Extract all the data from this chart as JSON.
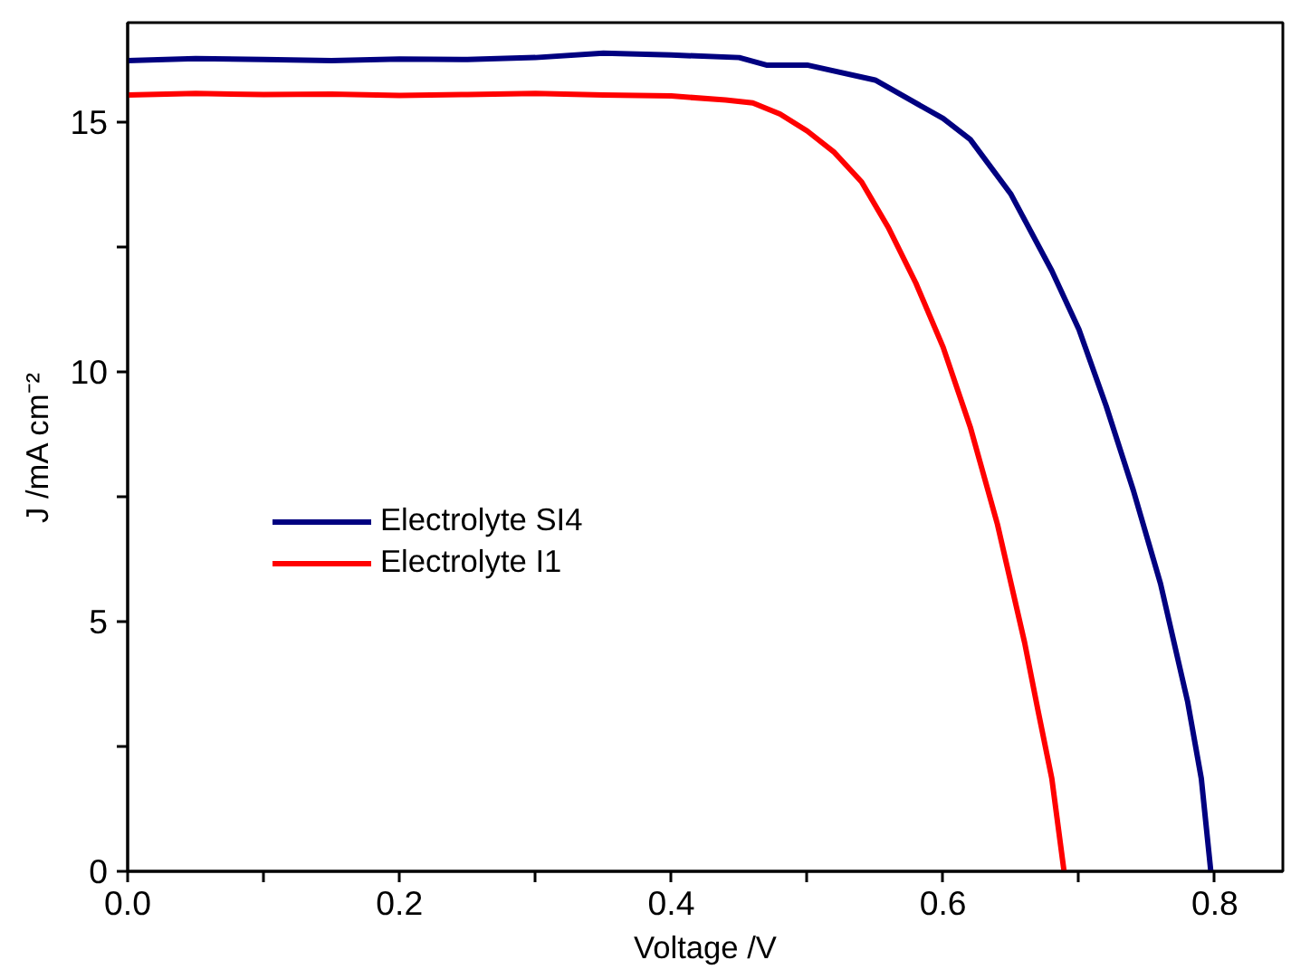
{
  "chart_data": {
    "type": "line",
    "xlabel": "Voltage /V",
    "ylabel": "J /mA cm⁻²",
    "xlim": [
      0,
      0.85
    ],
    "ylim": [
      0,
      17
    ],
    "xticks": [
      {
        "value": 0,
        "label": "0.0"
      },
      {
        "value": 0.1,
        "label": null
      },
      0.2,
      {
        "value": 0.3,
        "label": null
      },
      0.4,
      {
        "value": 0.5,
        "label": null
      },
      0.6,
      {
        "value": 0.7,
        "label": null
      },
      0.8
    ],
    "yticks": [
      0,
      {
        "value": 2.5,
        "label": null
      },
      5,
      {
        "value": 7.5,
        "label": null
      },
      10,
      {
        "value": 12.5,
        "label": null
      },
      15
    ],
    "grid": false,
    "legend": "bottom left",
    "marker": "none",
    "line_style": "solid",
    "series": [
      {
        "name": "Electrolyte SI4",
        "color": "#000080",
        "x": [
          0,
          0.05,
          0.1,
          0.15,
          0.2,
          0.25,
          0.3,
          0.35,
          0.4,
          0.45,
          0.47,
          0.5,
          0.55,
          0.6,
          0.62,
          0.65,
          0.68,
          0.7,
          0.72,
          0.74,
          0.76,
          0.78,
          0.79,
          0.797
        ],
        "values": [
          16.24,
          16.28,
          16.26,
          16.24,
          16.27,
          16.26,
          16.3,
          16.39,
          16.35,
          16.3,
          16.15,
          16.15,
          15.85,
          15.08,
          14.66,
          13.56,
          12.03,
          10.85,
          9.32,
          7.63,
          5.76,
          3.39,
          1.86,
          0
        ]
      },
      {
        "name": "Electrolyte I1",
        "color": "#ff0000",
        "x": [
          0,
          0.05,
          0.1,
          0.15,
          0.2,
          0.25,
          0.3,
          0.35,
          0.4,
          0.44,
          0.46,
          0.48,
          0.5,
          0.52,
          0.54,
          0.56,
          0.58,
          0.6,
          0.62,
          0.64,
          0.66,
          0.67,
          0.68,
          0.689
        ],
        "values": [
          15.55,
          15.58,
          15.56,
          15.57,
          15.54,
          15.56,
          15.58,
          15.55,
          15.53,
          15.45,
          15.39,
          15.17,
          14.83,
          14.4,
          13.81,
          12.88,
          11.78,
          10.5,
          8.9,
          6.95,
          4.58,
          3.2,
          1.86,
          0
        ]
      }
    ]
  }
}
